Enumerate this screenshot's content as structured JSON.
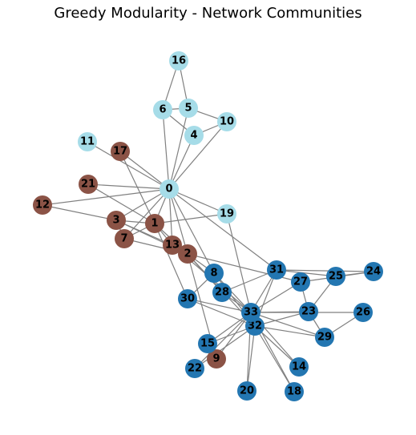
{
  "title": "Greedy Modularity - Network Communities",
  "community_colors": {
    "a": "#a6dce8",
    "b": "#8b5346",
    "c": "#2376b1"
  },
  "nodes": [
    {
      "id": "0",
      "community": "a"
    },
    {
      "id": "1",
      "community": "b"
    },
    {
      "id": "2",
      "community": "b"
    },
    {
      "id": "3",
      "community": "b"
    },
    {
      "id": "4",
      "community": "a"
    },
    {
      "id": "5",
      "community": "a"
    },
    {
      "id": "6",
      "community": "a"
    },
    {
      "id": "7",
      "community": "b"
    },
    {
      "id": "8",
      "community": "c"
    },
    {
      "id": "9",
      "community": "b"
    },
    {
      "id": "10",
      "community": "a"
    },
    {
      "id": "11",
      "community": "a"
    },
    {
      "id": "12",
      "community": "b"
    },
    {
      "id": "13",
      "community": "b"
    },
    {
      "id": "14",
      "community": "c"
    },
    {
      "id": "15",
      "community": "c"
    },
    {
      "id": "16",
      "community": "a"
    },
    {
      "id": "17",
      "community": "b"
    },
    {
      "id": "18",
      "community": "c"
    },
    {
      "id": "19",
      "community": "a"
    },
    {
      "id": "20",
      "community": "c"
    },
    {
      "id": "21",
      "community": "b"
    },
    {
      "id": "22",
      "community": "c"
    },
    {
      "id": "23",
      "community": "c"
    },
    {
      "id": "24",
      "community": "c"
    },
    {
      "id": "25",
      "community": "c"
    },
    {
      "id": "26",
      "community": "c"
    },
    {
      "id": "27",
      "community": "c"
    },
    {
      "id": "28",
      "community": "c"
    },
    {
      "id": "29",
      "community": "c"
    },
    {
      "id": "30",
      "community": "c"
    },
    {
      "id": "31",
      "community": "c"
    },
    {
      "id": "32",
      "community": "c"
    },
    {
      "id": "33",
      "community": "c"
    }
  ],
  "edges": [
    [
      "0",
      "1"
    ],
    [
      "0",
      "2"
    ],
    [
      "0",
      "3"
    ],
    [
      "0",
      "4"
    ],
    [
      "0",
      "5"
    ],
    [
      "0",
      "6"
    ],
    [
      "0",
      "7"
    ],
    [
      "0",
      "8"
    ],
    [
      "0",
      "10"
    ],
    [
      "0",
      "11"
    ],
    [
      "0",
      "12"
    ],
    [
      "0",
      "13"
    ],
    [
      "0",
      "17"
    ],
    [
      "0",
      "19"
    ],
    [
      "0",
      "21"
    ],
    [
      "0",
      "31"
    ],
    [
      "1",
      "2"
    ],
    [
      "1",
      "3"
    ],
    [
      "1",
      "7"
    ],
    [
      "1",
      "13"
    ],
    [
      "1",
      "17"
    ],
    [
      "1",
      "19"
    ],
    [
      "1",
      "21"
    ],
    [
      "1",
      "30"
    ],
    [
      "2",
      "3"
    ],
    [
      "2",
      "7"
    ],
    [
      "2",
      "8"
    ],
    [
      "2",
      "9"
    ],
    [
      "2",
      "13"
    ],
    [
      "2",
      "27"
    ],
    [
      "2",
      "28"
    ],
    [
      "2",
      "32"
    ],
    [
      "3",
      "7"
    ],
    [
      "3",
      "12"
    ],
    [
      "3",
      "13"
    ],
    [
      "4",
      "6"
    ],
    [
      "4",
      "10"
    ],
    [
      "5",
      "6"
    ],
    [
      "5",
      "10"
    ],
    [
      "5",
      "16"
    ],
    [
      "6",
      "16"
    ],
    [
      "8",
      "30"
    ],
    [
      "8",
      "32"
    ],
    [
      "8",
      "33"
    ],
    [
      "9",
      "33"
    ],
    [
      "13",
      "33"
    ],
    [
      "14",
      "32"
    ],
    [
      "14",
      "33"
    ],
    [
      "15",
      "32"
    ],
    [
      "15",
      "33"
    ],
    [
      "18",
      "32"
    ],
    [
      "18",
      "33"
    ],
    [
      "19",
      "33"
    ],
    [
      "20",
      "32"
    ],
    [
      "20",
      "33"
    ],
    [
      "22",
      "32"
    ],
    [
      "22",
      "33"
    ],
    [
      "23",
      "25"
    ],
    [
      "23",
      "27"
    ],
    [
      "23",
      "29"
    ],
    [
      "23",
      "32"
    ],
    [
      "23",
      "33"
    ],
    [
      "24",
      "25"
    ],
    [
      "24",
      "27"
    ],
    [
      "24",
      "31"
    ],
    [
      "25",
      "31"
    ],
    [
      "26",
      "29"
    ],
    [
      "26",
      "33"
    ],
    [
      "27",
      "33"
    ],
    [
      "28",
      "31"
    ],
    [
      "28",
      "33"
    ],
    [
      "29",
      "32"
    ],
    [
      "29",
      "33"
    ],
    [
      "30",
      "32"
    ],
    [
      "30",
      "33"
    ],
    [
      "31",
      "32"
    ],
    [
      "31",
      "33"
    ],
    [
      "32",
      "33"
    ]
  ]
}
